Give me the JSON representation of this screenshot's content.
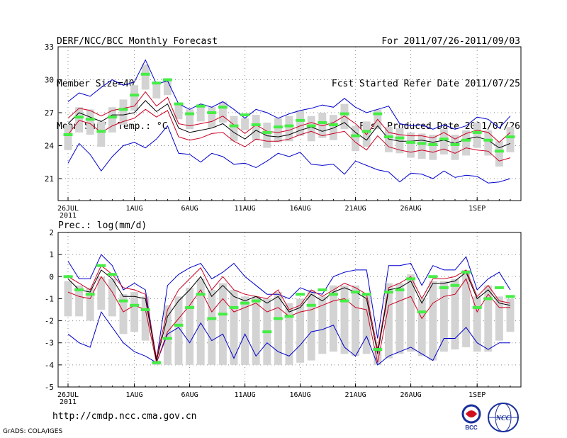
{
  "header": {
    "title": "DERF/NCC/BCC Monthly Forecast",
    "member_size": "Member Size=40",
    "variable": "Mean Surf. Temp.: °C",
    "period": "For 2011/07/26-2011/09/03",
    "started": "Fcst Started Refer Date 2011/07/25",
    "produced": "Fcst Produced Date 2011/07/26"
  },
  "footer": {
    "url": "http://cmdp.ncc.cma.gov.cn",
    "credit": "GrADS: COLA/IGES"
  },
  "logos": {
    "bcc": "BCC",
    "ncc": "NCC"
  },
  "colors": {
    "ensemble_mean": "#000000",
    "std_band": "#cc0022",
    "min_max": "#0000cc",
    "member_box": "#d3d3d3",
    "median_tick": "#44ee44"
  },
  "chart_data": [
    {
      "type": "line",
      "title": "Mean Surf. Temp.: °C",
      "ylim": [
        19,
        33
      ],
      "yticks": [
        "33",
        "30",
        "27",
        "24",
        "21"
      ],
      "xticks": [
        {
          "label": "26JUL",
          "day": 1
        },
        {
          "label": "1AUG",
          "day": 7
        },
        {
          "label": "6AUG",
          "day": 12
        },
        {
          "label": "11AUG",
          "day": 17
        },
        {
          "label": "16AUG",
          "day": 22
        },
        {
          "label": "21AUG",
          "day": 27
        },
        {
          "label": "26AUG",
          "day": 32
        },
        {
          "label": "1SEP",
          "day": 38
        }
      ],
      "year_label": "2011",
      "days": 40,
      "series": [
        {
          "name": "max",
          "role": "min_max",
          "values": [
            28.0,
            28.8,
            28.5,
            29.3,
            30.0,
            29.5,
            29.8,
            31.8,
            29.6,
            29.9,
            27.8,
            27.3,
            27.8,
            27.5,
            28.0,
            27.3,
            26.5,
            27.3,
            27.0,
            26.5,
            26.9,
            27.2,
            27.4,
            27.7,
            27.5,
            28.3,
            27.5,
            27.0,
            27.3,
            27.6,
            26.0,
            25.8,
            25.9,
            25.5,
            25.9,
            25.5,
            25.8,
            26.6,
            26.4,
            25.6,
            26.7
          ]
        },
        {
          "name": "mean+sd",
          "role": "std_band",
          "values": [
            26.5,
            27.4,
            27.2,
            26.7,
            27.2,
            27.4,
            27.6,
            28.9,
            27.6,
            28.4,
            26.0,
            25.8,
            26.0,
            26.2,
            26.7,
            25.9,
            25.1,
            25.9,
            25.3,
            25.2,
            25.4,
            25.8,
            26.1,
            25.8,
            26.1,
            26.7,
            26.0,
            25.0,
            26.4,
            25.2,
            25.0,
            24.9,
            24.9,
            24.7,
            25.2,
            24.6,
            25.1,
            25.4,
            25.2,
            24.3,
            25.2
          ]
        },
        {
          "name": "ensemble_mean",
          "role": "ensemble_mean",
          "values": [
            26.0,
            27.0,
            26.6,
            26.2,
            26.8,
            26.8,
            27.0,
            28.1,
            27.1,
            27.8,
            25.6,
            25.2,
            25.4,
            25.6,
            26.0,
            25.2,
            24.6,
            25.4,
            24.9,
            24.8,
            25.0,
            25.4,
            25.7,
            25.3,
            25.6,
            26.1,
            25.2,
            24.5,
            25.8,
            24.6,
            24.4,
            24.4,
            24.5,
            24.3,
            24.5,
            24.2,
            24.6,
            24.8,
            24.5,
            23.8,
            24.2
          ]
        },
        {
          "name": "mean-sd",
          "role": "std_band",
          "values": [
            25.0,
            26.3,
            26.0,
            25.2,
            25.8,
            26.2,
            26.5,
            27.3,
            26.6,
            27.2,
            24.8,
            24.5,
            24.7,
            25.1,
            25.2,
            24.4,
            23.9,
            24.6,
            24.4,
            24.4,
            24.6,
            25.0,
            25.3,
            24.9,
            25.1,
            25.3,
            24.3,
            23.6,
            24.9,
            23.9,
            23.6,
            23.4,
            23.6,
            23.4,
            23.7,
            23.3,
            23.8,
            23.6,
            23.5,
            22.6,
            22.9
          ]
        },
        {
          "name": "min",
          "role": "min_max",
          "values": [
            22.4,
            24.2,
            23.2,
            21.7,
            23.0,
            24.0,
            24.3,
            23.8,
            24.6,
            25.8,
            23.3,
            23.2,
            22.5,
            23.3,
            23.0,
            22.3,
            22.4,
            22.0,
            22.6,
            23.3,
            23.0,
            23.4,
            22.3,
            22.2,
            22.3,
            21.4,
            22.6,
            22.2,
            21.8,
            21.6,
            20.7,
            21.5,
            21.4,
            21.0,
            21.7,
            21.1,
            21.3,
            21.2,
            20.6,
            20.7,
            21.0
          ]
        },
        {
          "name": "median",
          "role": "median_tick",
          "values": [
            25.0,
            26.6,
            26.4,
            25.3,
            26.6,
            27.3,
            28.6,
            30.5,
            29.7,
            30.0,
            27.8,
            26.9,
            27.6,
            27.0,
            27.5,
            25.8,
            26.8,
            25.9,
            25.2,
            25.7,
            25.8,
            26.3,
            25.8,
            26.1,
            25.9,
            26.9,
            24.9,
            25.3,
            26.9,
            24.8,
            24.7,
            24.3,
            24.2,
            24.1,
            24.6,
            24.1,
            24.5,
            25.2,
            24.5,
            23.5,
            24.8
          ]
        }
      ]
    },
    {
      "type": "line",
      "title": "Prec.: log(mm/d)",
      "ylim": [
        -5,
        2
      ],
      "yticks": [
        "2",
        "1",
        "0",
        "-1",
        "-2",
        "-3",
        "-4",
        "-5"
      ],
      "xticks": [
        {
          "label": "26JUL",
          "day": 1
        },
        {
          "label": "1AUG",
          "day": 7
        },
        {
          "label": "6AUG",
          "day": 12
        },
        {
          "label": "11AUG",
          "day": 17
        },
        {
          "label": "16AUG",
          "day": 22
        },
        {
          "label": "21AUG",
          "day": 27
        },
        {
          "label": "26AUG",
          "day": 32
        },
        {
          "label": "1SEP",
          "day": 38
        }
      ],
      "year_label": "2011",
      "days": 40,
      "series": [
        {
          "name": "max",
          "role": "min_max",
          "values": [
            0.7,
            -0.1,
            -0.1,
            1.0,
            0.5,
            -0.6,
            -0.3,
            -0.6,
            -3.8,
            -0.4,
            0.1,
            0.4,
            0.6,
            -0.1,
            0.2,
            0.6,
            0.0,
            -0.4,
            -0.8,
            -0.8,
            -1.0,
            -0.5,
            -0.7,
            -0.8,
            0.0,
            0.2,
            0.3,
            0.3,
            -2.8,
            0.5,
            0.5,
            0.6,
            -0.4,
            0.5,
            0.3,
            0.3,
            0.9,
            -0.6,
            -0.1,
            0.2,
            -0.6
          ]
        },
        {
          "name": "mean+sd",
          "role": "std_band",
          "values": [
            0.0,
            -0.3,
            -0.6,
            0.5,
            0.1,
            -0.5,
            -0.6,
            -0.8,
            -3.7,
            -1.5,
            -0.6,
            -0.1,
            0.4,
            -0.6,
            0.0,
            -0.6,
            -0.8,
            -0.9,
            -1.0,
            -0.6,
            -1.5,
            -1.3,
            -0.6,
            -0.9,
            -0.6,
            -0.3,
            -0.5,
            -0.8,
            -3.3,
            -0.5,
            -0.3,
            0.0,
            -1.0,
            -0.1,
            -0.1,
            0.0,
            0.3,
            -0.9,
            -0.4,
            -1.1,
            -1.2
          ]
        },
        {
          "name": "ensemble_mean",
          "role": "ensemble_mean",
          "values": [
            -0.1,
            -0.6,
            -0.7,
            0.3,
            -0.1,
            -0.9,
            -0.9,
            -1.0,
            -3.8,
            -1.8,
            -1.1,
            -0.6,
            0.0,
            -0.9,
            -0.4,
            -0.9,
            -1.1,
            -0.9,
            -1.2,
            -0.9,
            -1.6,
            -1.4,
            -0.8,
            -1.1,
            -0.7,
            -0.5,
            -0.7,
            -1.0,
            -3.5,
            -0.6,
            -0.5,
            -0.2,
            -1.2,
            -0.3,
            -0.3,
            -0.2,
            0.2,
            -1.0,
            -0.6,
            -1.2,
            -1.3
          ]
        },
        {
          "name": "mean-sd",
          "role": "std_band",
          "values": [
            -0.7,
            -0.9,
            -1.0,
            0.0,
            -0.7,
            -1.6,
            -1.3,
            -1.5,
            -3.9,
            -2.5,
            -1.9,
            -1.3,
            -0.6,
            -1.6,
            -1.0,
            -1.6,
            -1.4,
            -1.2,
            -1.6,
            -1.4,
            -1.8,
            -1.6,
            -1.5,
            -1.3,
            -1.1,
            -1.0,
            -1.4,
            -1.5,
            -3.9,
            -1.3,
            -1.1,
            -0.9,
            -1.9,
            -1.2,
            -0.9,
            -0.8,
            -0.1,
            -1.6,
            -0.8,
            -1.4,
            -1.4
          ]
        },
        {
          "name": "min",
          "role": "min_max",
          "values": [
            -2.6,
            -3.0,
            -3.2,
            -1.6,
            -2.3,
            -3.0,
            -3.4,
            -3.6,
            -3.9,
            -2.6,
            -2.3,
            -3.0,
            -2.1,
            -2.9,
            -2.6,
            -3.7,
            -2.6,
            -3.6,
            -3.0,
            -3.4,
            -3.6,
            -3.1,
            -2.5,
            -2.4,
            -2.2,
            -3.2,
            -3.6,
            -2.7,
            -4.0,
            -3.6,
            -3.4,
            -3.2,
            -3.5,
            -3.8,
            -2.8,
            -2.8,
            -2.3,
            -3.0,
            -3.3,
            -3.0,
            -3.0
          ]
        },
        {
          "name": "median",
          "role": "median_tick",
          "values": [
            0.0,
            -0.6,
            -0.8,
            0.5,
            0.1,
            -1.1,
            -1.3,
            -1.5,
            -3.9,
            -2.8,
            -2.2,
            -1.4,
            -0.8,
            -1.9,
            -1.7,
            -1.4,
            -1.2,
            -1.1,
            -2.5,
            -1.9,
            -1.8,
            -0.8,
            -1.3,
            -0.6,
            -0.8,
            -1.1,
            -0.7,
            -0.8,
            -3.3,
            -0.7,
            -0.6,
            -0.1,
            -1.6,
            0.0,
            -0.5,
            -0.4,
            0.2,
            -1.4,
            -1.0,
            -0.5,
            -0.9
          ]
        },
        {
          "name": "member_box_top",
          "role": "member_box",
          "values": [
            -0.2,
            -0.4,
            -0.5,
            0.0,
            -0.1,
            -0.8,
            -0.7,
            -0.9,
            -3.8,
            -1.3,
            -0.9,
            -0.5,
            -0.1,
            -0.6,
            -0.3,
            -0.6,
            -0.9,
            -0.9,
            -1.0,
            -0.7,
            -1.2,
            -1.0,
            -0.6,
            -0.9,
            -0.4,
            -0.4,
            -0.4,
            -0.8,
            -3.2,
            -0.3,
            -0.3,
            0.1,
            -1.0,
            -0.2,
            -0.2,
            -0.1,
            0.3,
            -0.9,
            -0.4,
            -0.9,
            -1.0
          ]
        },
        {
          "name": "member_box_bottom",
          "role": "member_box",
          "values": [
            -1.8,
            -1.8,
            -2.0,
            -1.5,
            -1.8,
            -2.6,
            -2.5,
            -2.9,
            -4.0,
            -4.0,
            -4.0,
            -4.0,
            -4.0,
            -4.0,
            -4.0,
            -4.0,
            -4.0,
            -4.0,
            -4.0,
            -4.0,
            -4.0,
            -3.9,
            -3.8,
            -3.5,
            -3.4,
            -3.5,
            -3.6,
            -3.5,
            -4.0,
            -3.7,
            -3.5,
            -3.4,
            -3.6,
            -3.8,
            -3.4,
            -3.3,
            -3.2,
            -3.4,
            -3.4,
            -2.9,
            -2.5
          ]
        }
      ]
    }
  ]
}
